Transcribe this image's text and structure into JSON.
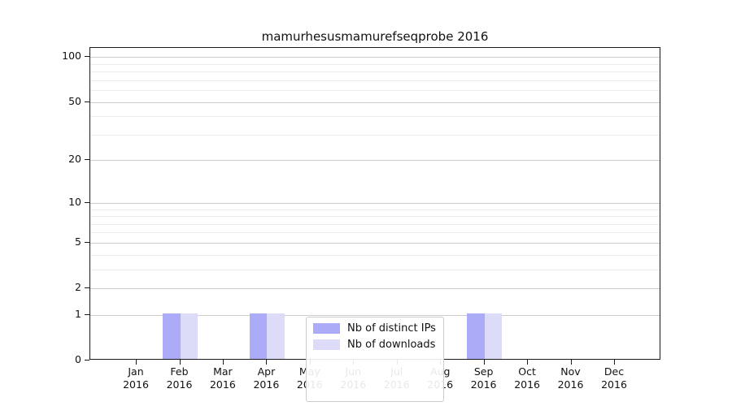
{
  "page": {
    "background": "#ffffff"
  },
  "chart_data": {
    "type": "bar",
    "title": "mamurhesusmamurefseqprobe 2016",
    "categories": [
      {
        "month": "Jan",
        "year": "2016"
      },
      {
        "month": "Feb",
        "year": "2016"
      },
      {
        "month": "Mar",
        "year": "2016"
      },
      {
        "month": "Apr",
        "year": "2016"
      },
      {
        "month": "May",
        "year": "2016"
      },
      {
        "month": "Jun",
        "year": "2016"
      },
      {
        "month": "Jul",
        "year": "2016"
      },
      {
        "month": "Aug",
        "year": "2016"
      },
      {
        "month": "Sep",
        "year": "2016"
      },
      {
        "month": "Oct",
        "year": "2016"
      },
      {
        "month": "Nov",
        "year": "2016"
      },
      {
        "month": "Dec",
        "year": "2016"
      }
    ],
    "series": [
      {
        "name": "Nb of distinct IPs",
        "color": "#ababf8",
        "values": [
          0,
          1,
          0,
          1,
          0,
          0,
          0,
          0,
          1,
          0,
          0,
          0
        ]
      },
      {
        "name": "Nb of downloads",
        "color": "#dcdcf8",
        "values": [
          0,
          1,
          0,
          1,
          0,
          0,
          0,
          0,
          1,
          0,
          0,
          0
        ]
      }
    ],
    "y_axis": {
      "scale": "log1p",
      "major_ticks": [
        0,
        1,
        2,
        5,
        10,
        20,
        50,
        100
      ],
      "minor_ticks": [
        3,
        4,
        6,
        7,
        8,
        9,
        30,
        40,
        60,
        70,
        80,
        90
      ],
      "min": 0,
      "max": 115,
      "grid": true
    },
    "x_axis": {
      "label": "",
      "grid": false
    },
    "legend": {
      "position": "lower center"
    }
  },
  "colors": {
    "major_grid": "#cccccc",
    "minor_grid": "#ececec",
    "spine": "#1a1a1a",
    "text": "#111111",
    "legend_border": "#cccccc",
    "legend_bg": "#ffffff"
  }
}
